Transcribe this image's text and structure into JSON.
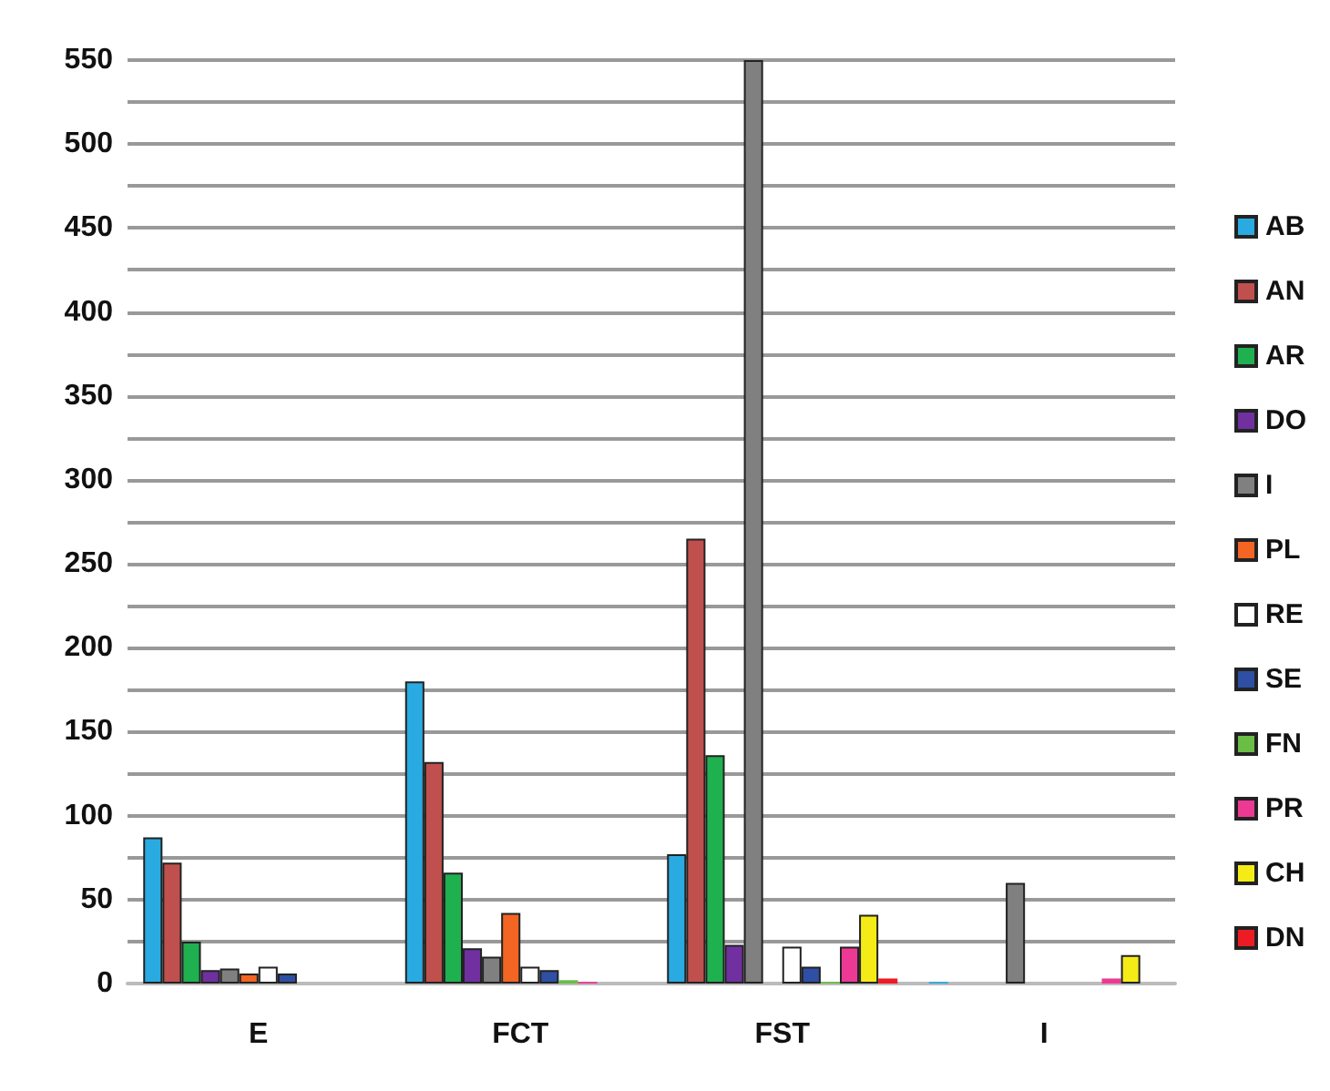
{
  "chart_data": {
    "type": "bar",
    "categories": [
      "E",
      "FCT",
      "FST",
      "I"
    ],
    "series": [
      {
        "name": "AB",
        "color": "#29abe2",
        "values": [
          87,
          180,
          77,
          1
        ]
      },
      {
        "name": "AN",
        "color": "#c0504d",
        "values": [
          72,
          132,
          265,
          null
        ]
      },
      {
        "name": "AR",
        "color": "#1fb050",
        "values": [
          25,
          66,
          136,
          null
        ]
      },
      {
        "name": "DO",
        "color": "#7030a0",
        "values": [
          8,
          21,
          23,
          null
        ]
      },
      {
        "name": "I",
        "color": "#808080",
        "values": [
          9,
          16,
          550,
          60
        ]
      },
      {
        "name": "PL",
        "color": "#f26522",
        "values": [
          6,
          42,
          null,
          null
        ]
      },
      {
        "name": "RE",
        "color": "#ffffff",
        "values": [
          10,
          10,
          22,
          null
        ]
      },
      {
        "name": "SE",
        "color": "#2e4fa3",
        "values": [
          6,
          8,
          10,
          null
        ]
      },
      {
        "name": "FN",
        "color": "#6abd45",
        "values": [
          null,
          2,
          1,
          null
        ]
      },
      {
        "name": "PR",
        "color": "#ec3a94",
        "values": [
          null,
          1,
          22,
          3
        ]
      },
      {
        "name": "CH",
        "color": "#f5ec17",
        "values": [
          null,
          null,
          41,
          17
        ]
      },
      {
        "name": "DN",
        "color": "#ed1c24",
        "values": [
          null,
          null,
          3,
          null
        ]
      }
    ],
    "ylim": [
      0,
      550
    ],
    "yticks": [
      0,
      {
        "value": 25,
        "label": null
      },
      50,
      {
        "value": 75,
        "label": null
      },
      100,
      {
        "value": 125,
        "label": null
      },
      150,
      {
        "value": 175,
        "label": null
      },
      200,
      {
        "value": 225,
        "label": null
      },
      250,
      {
        "value": 275,
        "label": null
      },
      300,
      {
        "value": 325,
        "label": null
      },
      350,
      {
        "value": 375,
        "label": null
      },
      400,
      {
        "value": 425,
        "label": null
      },
      450,
      {
        "value": 475,
        "label": null
      },
      500,
      {
        "value": 525,
        "label": null
      },
      550
    ],
    "grid": "y",
    "legend": "right"
  }
}
